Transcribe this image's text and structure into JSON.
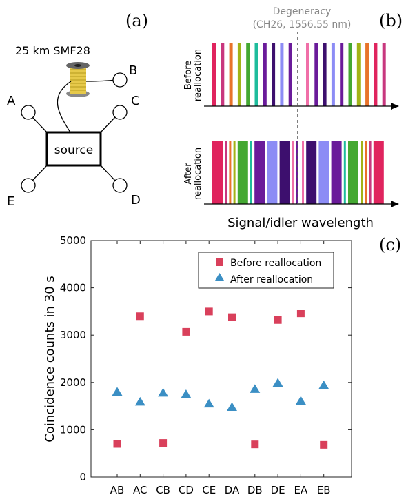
{
  "panel_a": {
    "label": "(a)",
    "fiber_label": "25 km SMF28",
    "source_label": "source",
    "nodes": [
      "A",
      "B",
      "C",
      "D",
      "E"
    ]
  },
  "panel_b": {
    "label": "(b)",
    "degeneracy_line1": "Degeneracy",
    "degeneracy_line2": "(CH26, 1556.55 nm)",
    "before_label_1": "Before",
    "before_label_2": "reallocation",
    "after_label_1": "After",
    "after_label_2": "reallocation",
    "xlabel": "Signal/idler wavelength",
    "colors": {
      "crimson": "#e0245e",
      "orange": "#e8732a",
      "olive": "#a2b317",
      "green": "#44a832",
      "teal": "#1ebc9c",
      "darkpurple": "#6a1b9a",
      "indigo": "#3d0f6e",
      "pink": "#f06fa8",
      "periwinkle": "#8c8cf5",
      "magenta": "#c8377e",
      "axis": "#000000",
      "degeneracy": "#555555"
    },
    "before_bars": [
      "crimson",
      "magenta",
      "orange",
      "olive",
      "green",
      "teal",
      "darkpurple",
      "indigo",
      "periwinkle",
      "darkpurple",
      "pink",
      "darkpurple",
      "indigo",
      "periwinkle",
      "darkpurple",
      "green",
      "olive",
      "orange",
      "crimson",
      "magenta"
    ],
    "after_bars": [
      {
        "c": "crimson",
        "w": "wide"
      },
      {
        "c": "magenta",
        "w": "thin"
      },
      {
        "c": "orange",
        "w": "thin"
      },
      {
        "c": "olive",
        "w": "thin"
      },
      {
        "c": "green",
        "w": "wide"
      },
      {
        "c": "teal",
        "w": "thin"
      },
      {
        "c": "darkpurple",
        "w": "wide"
      },
      {
        "c": "periwinkle",
        "w": "wide"
      },
      {
        "c": "indigo",
        "w": "wide"
      },
      {
        "c": "pink",
        "w": "thin"
      },
      {
        "c": "darkpurple",
        "w": "thin"
      },
      {
        "c": "pink",
        "w": "thin"
      },
      {
        "c": "indigo",
        "w": "wide"
      },
      {
        "c": "periwinkle",
        "w": "wide"
      },
      {
        "c": "darkpurple",
        "w": "wide"
      },
      {
        "c": "teal",
        "w": "thin"
      },
      {
        "c": "green",
        "w": "wide"
      },
      {
        "c": "olive",
        "w": "thin"
      },
      {
        "c": "orange",
        "w": "thin"
      },
      {
        "c": "magenta",
        "w": "thin"
      },
      {
        "c": "crimson",
        "w": "wide"
      }
    ]
  },
  "chart_data": {
    "type": "scatter",
    "panel_label": "(c)",
    "ylabel": "Coincidence counts in 30 s",
    "xlabel": "",
    "categories": [
      "AB",
      "AC",
      "CB",
      "CD",
      "CE",
      "DA",
      "DB",
      "DE",
      "EA",
      "EB"
    ],
    "ylim": [
      0,
      5000
    ],
    "yticks": [
      0,
      1000,
      2000,
      3000,
      4000,
      5000
    ],
    "grid": false,
    "legend_position": "top-right",
    "series": [
      {
        "name": "Before reallocation",
        "marker": "square",
        "color": "#d9405b",
        "values": [
          700,
          3400,
          720,
          3070,
          3500,
          3380,
          690,
          3320,
          3460,
          680
        ]
      },
      {
        "name": "After reallocation",
        "marker": "triangle",
        "color": "#3b8fc4",
        "values": [
          1800,
          1590,
          1780,
          1750,
          1550,
          1480,
          1860,
          1990,
          1610,
          1940
        ]
      }
    ]
  }
}
